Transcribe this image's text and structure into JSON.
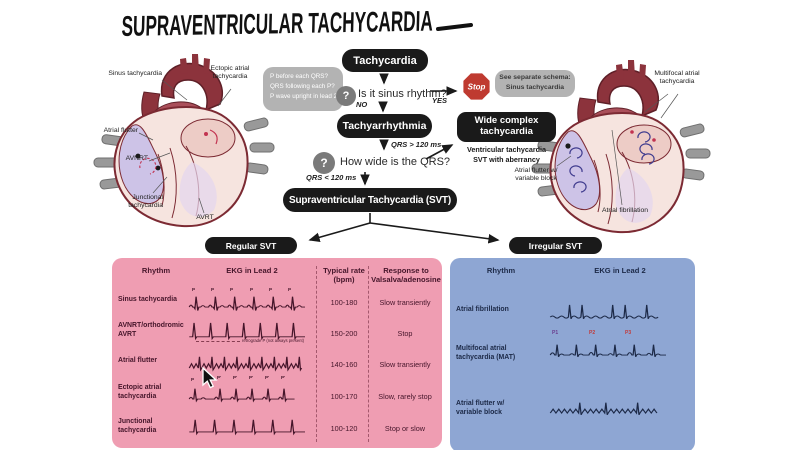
{
  "title": "Supraventricular Tachycardia",
  "flowchart": {
    "tachycardia_label": "Tachycardia",
    "question_mark": "?",
    "sinus_criteria": {
      "line1": "P before each QRS?",
      "line2": "QRS following each P?",
      "line3": "P wave upright in lead 2"
    },
    "q_sinus": "Is it sinus rhythm?",
    "yes_label": "YES",
    "no_label": "NO",
    "stop_label": "Stop",
    "see_schema_line1": "See separate schema:",
    "see_schema_line2": "Sinus tachycardia",
    "tachyarrhythmia_label": "Tachyarrhythmia",
    "qrs_gt_label": "QRS > 120 ms",
    "q_qrs": "How wide is the QRS?",
    "qrs_lt_label": "QRS < 120 ms",
    "wide_complex_line1": "Wide complex",
    "wide_complex_line2": "tachycardia",
    "wide_sub_line1": "Ventricular tachycardia",
    "wide_sub_line2": "SVT with aberrancy",
    "svt_label": "Supraventricular Tachycardia (SVT)",
    "regular_label": "Regular SVT",
    "irregular_label": "Irregular SVT"
  },
  "left_heart": {
    "labels": {
      "sinus": "Sinus tachycardia",
      "ectopic": "Ectopic atrial tachycardia",
      "flutter": "Atrial flutter",
      "avnrt": "AVNRT",
      "junctional": "Junctional tachycardia",
      "avrt": "AVRT"
    }
  },
  "right_heart": {
    "labels": {
      "mat": "Multifocal atrial tachycardia",
      "flutter_block": "Atrial flutter w/ variable block",
      "afib": "Atrial fibrillation"
    }
  },
  "regular_table": {
    "headers": {
      "rhythm": "Rhythm",
      "ekg": "EKG in Lead 2",
      "rate": "Typical rate (bpm)",
      "response": "Response to Valsalva/adenosine"
    },
    "rows": [
      {
        "rhythm": "Sinus tachycardia",
        "rate": "100-180",
        "response": "Slow transiently"
      },
      {
        "rhythm": "AVNRT/orthodromic AVRT",
        "rate": "150-200",
        "response": "Stop"
      },
      {
        "rhythm": "Atrial flutter",
        "rate": "140-160",
        "response": "Slow transiently"
      },
      {
        "rhythm": "Ectopic atrial tachycardia",
        "rate": "100-170",
        "response": "Slow, rarely stop"
      },
      {
        "rhythm": "Junctional tachycardia",
        "rate": "100-120",
        "response": "Stop or slow"
      }
    ],
    "annotations": {
      "p": "P",
      "p_prime": "P'",
      "retrograde_note": "retrograde P (not always present)"
    }
  },
  "irregular_table": {
    "headers": {
      "rhythm": "Rhythm",
      "ekg": "EKG in Lead 2"
    },
    "rows": [
      {
        "rhythm": "Atrial fibrillation"
      },
      {
        "rhythm": "Multifocal atrial tachycardia (MAT)"
      },
      {
        "rhythm": "Atrial flutter w/ variable block"
      }
    ],
    "annotations": {
      "p1": "P1",
      "p2": "P2",
      "p3": "P3"
    }
  },
  "colors": {
    "regular_panel": "#ef9db2",
    "irregular_panel": "#8ea6d3",
    "node_black": "#1a1a1a",
    "stop_red": "#bf3a30",
    "bubble_gray": "#b3b3b3",
    "regular_ink": "#45152a",
    "irregular_ink": "#1c2947"
  }
}
